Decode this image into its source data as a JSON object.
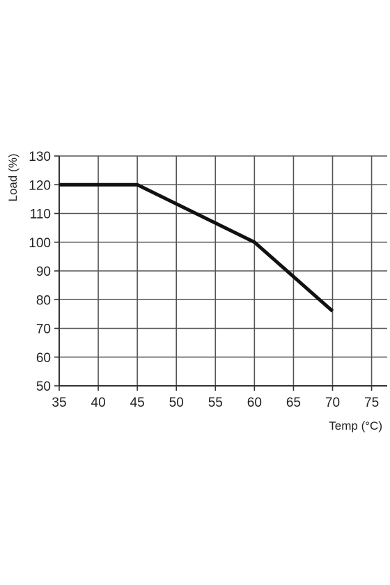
{
  "chart_data": {
    "type": "line",
    "title": "",
    "xlabel": "Temp (°C)",
    "ylabel": "Load (%)",
    "xlim": [
      35,
      77
    ],
    "ylim": [
      50,
      130
    ],
    "x_ticks": [
      35,
      40,
      45,
      50,
      55,
      60,
      65,
      70,
      75
    ],
    "x_tick_labels": [
      "35",
      "40",
      "45",
      "50",
      "55",
      "60",
      "65",
      "70",
      "75"
    ],
    "y_ticks": [
      50,
      60,
      70,
      80,
      90,
      100,
      110,
      120,
      130
    ],
    "y_tick_labels": [
      "50",
      "60",
      "70",
      "80",
      "90",
      "100",
      "110",
      "120",
      "130"
    ],
    "grid": true,
    "series": [
      {
        "color": "#111111",
        "points": [
          {
            "x": 35,
            "y": 120
          },
          {
            "x": 45,
            "y": 120
          },
          {
            "x": 60,
            "y": 100
          },
          {
            "x": 70,
            "y": 76
          }
        ]
      }
    ]
  }
}
